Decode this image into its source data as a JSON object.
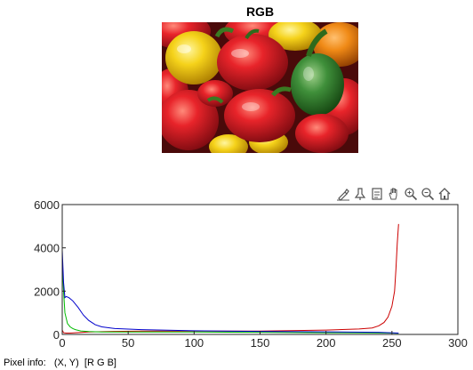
{
  "figure": {
    "image_title": "RGB",
    "image_description": "photo of red, yellow and green bell peppers"
  },
  "toolbar": {
    "buttons": [
      {
        "name": "brush-icon",
        "label": "Brush/Select data"
      },
      {
        "name": "data-tips-icon",
        "label": "Data tips"
      },
      {
        "name": "export-icon",
        "label": "Export"
      },
      {
        "name": "pan-icon",
        "label": "Pan"
      },
      {
        "name": "zoom-in-icon",
        "label": "Zoom in"
      },
      {
        "name": "zoom-out-icon",
        "label": "Zoom out"
      },
      {
        "name": "home-icon",
        "label": "Restore view"
      }
    ]
  },
  "chart_data": {
    "type": "line",
    "title": "",
    "xlabel": "",
    "ylabel": "",
    "xlim": [
      0,
      300
    ],
    "ylim": [
      0,
      6000
    ],
    "xticks": [
      0,
      50,
      100,
      150,
      200,
      250,
      300
    ],
    "yticks": [
      0,
      2000,
      4000,
      6000
    ],
    "series": [
      {
        "name": "Red",
        "color": "#cc0000",
        "x": [
          0,
          1,
          3,
          6,
          10,
          20,
          40,
          60,
          100,
          150,
          200,
          225,
          235,
          240,
          244,
          247,
          250,
          252,
          253,
          254,
          255
        ],
        "y": [
          200,
          80,
          60,
          60,
          80,
          110,
          140,
          150,
          150,
          150,
          200,
          250,
          300,
          400,
          550,
          800,
          1300,
          2000,
          3000,
          4200,
          5100
        ]
      },
      {
        "name": "Green",
        "color": "#00bb00",
        "x": [
          0,
          1,
          2,
          4,
          6,
          8,
          10,
          14,
          20,
          30,
          50,
          100,
          150,
          200,
          230,
          250,
          255
        ],
        "y": [
          3400,
          2000,
          1000,
          500,
          350,
          270,
          220,
          160,
          130,
          110,
          110,
          110,
          100,
          80,
          70,
          60,
          50
        ]
      },
      {
        "name": "Blue",
        "color": "#0000cc",
        "x": [
          0,
          1,
          2,
          3,
          5,
          8,
          12,
          16,
          20,
          25,
          30,
          40,
          60,
          100,
          150,
          200,
          240,
          255
        ],
        "y": [
          3900,
          2400,
          1700,
          1750,
          1700,
          1550,
          1250,
          900,
          650,
          450,
          350,
          270,
          220,
          170,
          140,
          120,
          100,
          60
        ]
      }
    ]
  },
  "status": {
    "label": "Pixel info:",
    "coords": "(X, Y)",
    "rgb": "[R G B]"
  }
}
